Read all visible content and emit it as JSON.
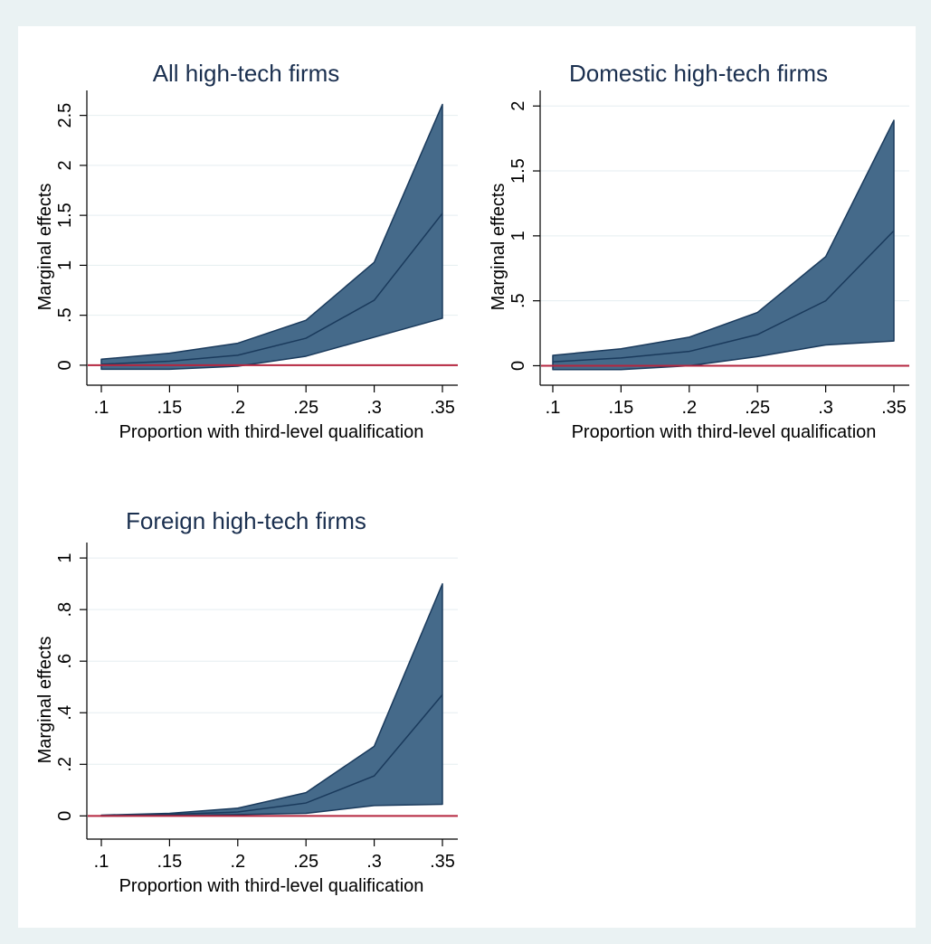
{
  "chart_data": [
    {
      "type": "area",
      "title": "All high-tech firms",
      "xlabel": "Proportion with third-level qualification",
      "ylabel": "Marginal effects",
      "x": [
        0.1,
        0.15,
        0.2,
        0.25,
        0.3,
        0.35
      ],
      "x_tick_labels": [
        ".1",
        ".15",
        ".2",
        ".25",
        ".3",
        ".35"
      ],
      "y_ticks": [
        0,
        0.5,
        1,
        1.5,
        2,
        2.5
      ],
      "y_tick_labels": [
        "0",
        ".5",
        "1",
        "1.5",
        "2",
        "2.5"
      ],
      "ylim": [
        -0.2,
        2.75
      ],
      "series": [
        {
          "role": "upper_ci",
          "values": [
            0.06,
            0.12,
            0.22,
            0.45,
            1.03,
            2.61
          ]
        },
        {
          "role": "estimate",
          "values": [
            0.01,
            0.04,
            0.1,
            0.27,
            0.65,
            1.52
          ]
        },
        {
          "role": "lower_ci",
          "values": [
            -0.04,
            -0.04,
            -0.01,
            0.09,
            0.28,
            0.47
          ]
        }
      ],
      "reference_line": 0,
      "grid": true
    },
    {
      "type": "area",
      "title": "Domestic high-tech firms",
      "xlabel": "Proportion with third-level qualification",
      "ylabel": "Marginal effects",
      "x": [
        0.1,
        0.15,
        0.2,
        0.25,
        0.3,
        0.35
      ],
      "x_tick_labels": [
        ".1",
        ".15",
        ".2",
        ".25",
        ".3",
        ".35"
      ],
      "y_ticks": [
        0,
        0.5,
        1,
        1.5,
        2
      ],
      "y_tick_labels": [
        "0",
        ".5",
        "1",
        "1.5",
        "2"
      ],
      "ylim": [
        -0.15,
        2.12
      ],
      "series": [
        {
          "role": "upper_ci",
          "values": [
            0.08,
            0.13,
            0.22,
            0.41,
            0.84,
            1.89
          ]
        },
        {
          "role": "estimate",
          "values": [
            0.03,
            0.06,
            0.11,
            0.24,
            0.5,
            1.04
          ]
        },
        {
          "role": "lower_ci",
          "values": [
            -0.03,
            -0.03,
            0.0,
            0.07,
            0.16,
            0.19
          ]
        }
      ],
      "reference_line": 0,
      "grid": true
    },
    {
      "type": "area",
      "title": "Foreign high-tech firms",
      "xlabel": "Proportion with third-level qualification",
      "ylabel": "Marginal effects",
      "x": [
        0.1,
        0.15,
        0.2,
        0.25,
        0.3,
        0.35
      ],
      "x_tick_labels": [
        ".1",
        ".15",
        ".2",
        ".25",
        ".3",
        ".35"
      ],
      "y_ticks": [
        0,
        0.2,
        0.4,
        0.6,
        0.8,
        1
      ],
      "y_tick_labels": [
        "0",
        ".2",
        ".4",
        ".6",
        ".8",
        "1"
      ],
      "ylim": [
        -0.09,
        1.06
      ],
      "series": [
        {
          "role": "upper_ci",
          "values": [
            0.003,
            0.01,
            0.03,
            0.09,
            0.27,
            0.9
          ]
        },
        {
          "role": "estimate",
          "values": [
            0.001,
            0.006,
            0.015,
            0.05,
            0.155,
            0.47
          ]
        },
        {
          "role": "lower_ci",
          "values": [
            -0.001,
            0.002,
            0.005,
            0.01,
            0.04,
            0.045
          ]
        }
      ],
      "reference_line": 0,
      "grid": true
    }
  ],
  "style": {
    "background": "#eaf2f3",
    "panel_background": "#ffffff",
    "band_fill": "#456a8a",
    "band_edge": "#1a3a5c",
    "estimate_line": "#1a3a5c",
    "reference_line_color": "#b5263f",
    "grid_color": "#e5eef0",
    "title_color": "#1a2f4f"
  }
}
